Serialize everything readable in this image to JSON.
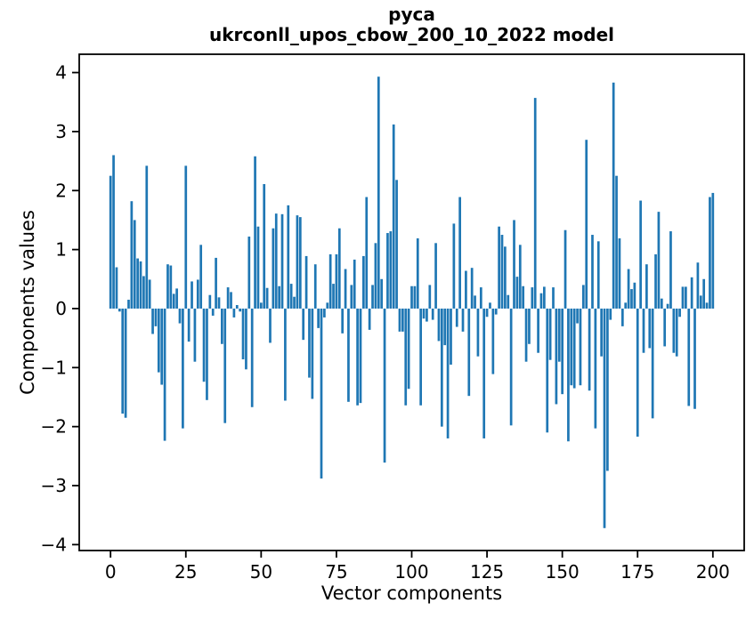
{
  "figure": {
    "background": "#ffffff",
    "title_line1": "руса",
    "title_line2": "ukrconll_upos_cbow_200_10_2022 model"
  },
  "chart_data": {
    "type": "bar",
    "title": "руса\nukrconll_upos_cbow_200_10_2022 model",
    "xlabel": "Vector components",
    "ylabel": "Components values",
    "x_ticks": [
      0,
      25,
      50,
      75,
      100,
      125,
      150,
      175,
      200
    ],
    "y_ticks": [
      -4,
      -3,
      -2,
      -1,
      0,
      1,
      2,
      3,
      4
    ],
    "xlim": [
      -10.4,
      210.4
    ],
    "ylim": [
      -4.1,
      4.31
    ],
    "grid": false,
    "legend": null,
    "bar_color": "#1f77b4",
    "axis_color": "#000000",
    "bar_width_units": 0.8,
    "x_start": 0,
    "values": [
      2.25,
      2.6,
      0.7,
      -0.05,
      -1.78,
      -1.85,
      0.15,
      1.82,
      1.5,
      0.85,
      0.8,
      0.55,
      2.42,
      0.49,
      -0.43,
      -0.3,
      -1.08,
      -1.29,
      -2.24,
      0.75,
      0.73,
      0.25,
      0.34,
      -0.25,
      -2.03,
      2.42,
      -0.56,
      0.46,
      -0.9,
      0.49,
      1.08,
      -1.24,
      -1.55,
      0.23,
      -0.12,
      0.86,
      0.19,
      -0.6,
      -1.94,
      0.36,
      0.28,
      -0.15,
      0.06,
      -0.05,
      -0.86,
      -1.03,
      1.22,
      -1.67,
      2.58,
      1.39,
      0.1,
      2.11,
      0.35,
      -0.58,
      1.36,
      1.61,
      0.38,
      1.6,
      -1.56,
      1.75,
      0.42,
      0.2,
      1.58,
      1.55,
      -0.53,
      0.89,
      -1.17,
      -1.53,
      0.75,
      -0.33,
      -2.88,
      -0.15,
      0.1,
      0.92,
      0.42,
      0.92,
      1.36,
      -0.42,
      0.67,
      -1.58,
      0.4,
      0.83,
      -1.64,
      -1.6,
      0.89,
      1.89,
      -0.36,
      0.4,
      1.11,
      3.93,
      0.5,
      -2.61,
      1.28,
      1.31,
      3.12,
      2.18,
      -0.39,
      -0.39,
      -1.64,
      -1.36,
      0.38,
      0.38,
      1.19,
      -1.64,
      -0.17,
      -0.22,
      0.4,
      -0.19,
      1.11,
      -0.55,
      -2.0,
      -0.62,
      -2.2,
      -0.95,
      1.44,
      -0.31,
      1.89,
      -0.39,
      0.64,
      -1.48,
      0.69,
      0.22,
      -0.81,
      0.36,
      -2.2,
      -0.14,
      0.1,
      -1.11,
      -0.1,
      1.39,
      1.25,
      1.05,
      0.23,
      -1.98,
      1.5,
      0.54,
      1.08,
      0.38,
      -0.9,
      -0.6,
      0.36,
      3.57,
      -0.75,
      0.26,
      0.37,
      -2.1,
      -0.87,
      0.36,
      -1.62,
      -0.9,
      -1.45,
      1.33,
      -2.25,
      -1.3,
      -1.35,
      -0.25,
      -1.3,
      0.4,
      2.86,
      -1.39,
      1.25,
      -2.03,
      1.14,
      -0.81,
      -3.72,
      -2.75,
      -0.19,
      3.83,
      2.25,
      1.19,
      -0.3,
      0.1,
      0.67,
      0.33,
      0.44,
      -2.17,
      1.83,
      -0.75,
      0.75,
      -0.67,
      -1.86,
      0.92,
      1.64,
      0.17,
      -0.64,
      0.08,
      1.31,
      -0.75,
      -0.81,
      -0.14,
      0.37,
      0.37,
      -1.65,
      0.53,
      -1.7,
      0.78,
      0.22,
      0.5,
      0.1,
      1.89,
      1.96
    ]
  }
}
